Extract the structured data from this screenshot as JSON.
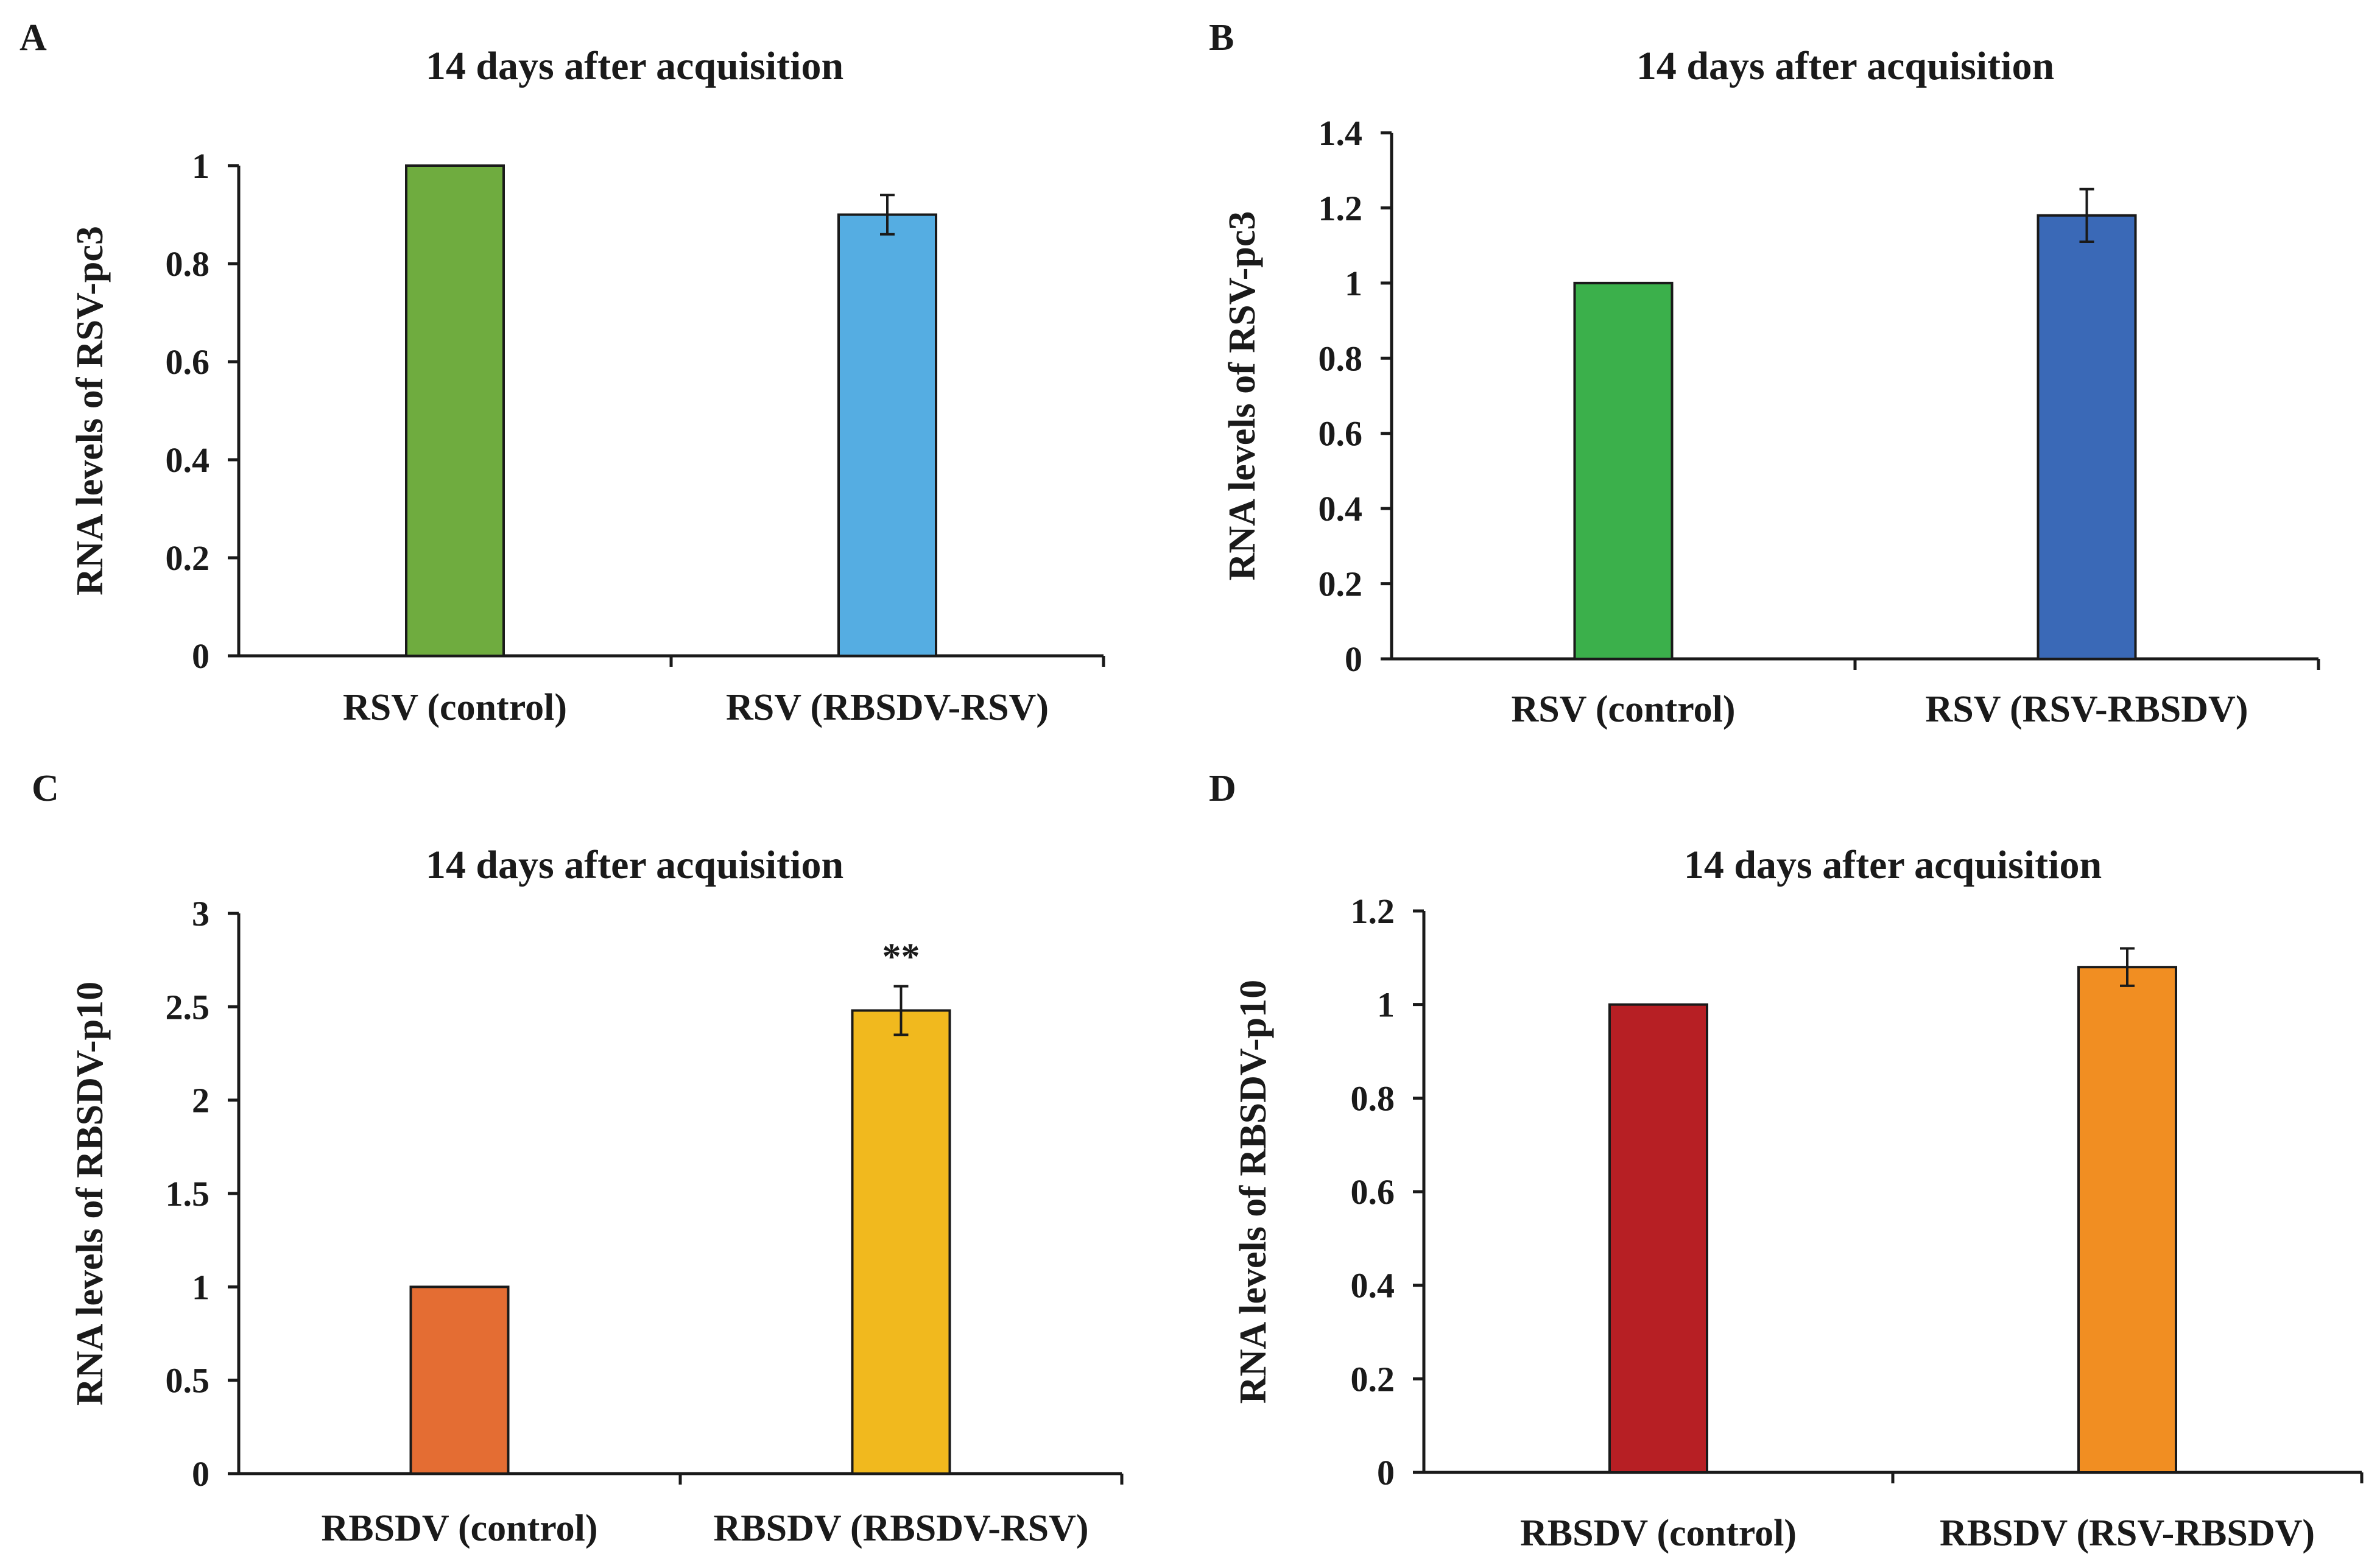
{
  "chart_data": [
    {
      "panel": "A",
      "type": "bar",
      "title": "14 days after acquisition",
      "xlabel": "",
      "ylabel": "RNA levels of RSV-pc3",
      "categories": [
        "RSV (control)",
        "RSV (RBSDV-RSV)"
      ],
      "values": [
        1.0,
        0.9
      ],
      "errors": [
        0,
        0.04
      ],
      "colors": [
        "#6fac3f",
        "#55ade2"
      ],
      "annotations": [
        "",
        ""
      ],
      "ylim": [
        0,
        1
      ],
      "ytick_labels": [
        "0",
        "0.2",
        "0.4",
        "0.6",
        "0.8",
        "1"
      ]
    },
    {
      "panel": "B",
      "type": "bar",
      "title": "14 days after acquisition",
      "xlabel": "",
      "ylabel": "RNA levels of RSV-pc3",
      "categories": [
        "RSV (control)",
        "RSV (RSV-RBSDV)"
      ],
      "values": [
        1.0,
        1.18
      ],
      "errors": [
        0,
        0.07
      ],
      "colors": [
        "#3bb04b",
        "#3a69b7"
      ],
      "annotations": [
        "",
        ""
      ],
      "ylim": [
        0,
        1.4
      ],
      "ytick_labels": [
        "0",
        "0.2",
        "0.4",
        "0.6",
        "0.8",
        "1",
        "1.2",
        "1.4"
      ]
    },
    {
      "panel": "C",
      "type": "bar",
      "title": "14 days after acquisition",
      "xlabel": "",
      "ylabel": "RNA levels of RBSDV-p10",
      "categories": [
        "RBSDV (control)",
        "RBSDV (RBSDV-RSV)"
      ],
      "values": [
        1.0,
        2.48
      ],
      "errors": [
        0,
        0.13
      ],
      "colors": [
        "#e46d33",
        "#f1b91e"
      ],
      "annotations": [
        "",
        "**"
      ],
      "ylim": [
        0,
        3
      ],
      "ytick_labels": [
        "0",
        "0.5",
        "1",
        "1.5",
        "2",
        "2.5",
        "3"
      ]
    },
    {
      "panel": "D",
      "type": "bar",
      "title": "14 days after acquisition",
      "xlabel": "",
      "ylabel": "RNA levels of RBSDV-p10",
      "categories": [
        "RBSDV (control)",
        "RBSDV (RSV-RBSDV)"
      ],
      "values": [
        1.0,
        1.08
      ],
      "errors": [
        0,
        0.04
      ],
      "colors": [
        "#b71f24",
        "#f18e22"
      ],
      "annotations": [
        "",
        ""
      ],
      "ylim": [
        0,
        1.2
      ],
      "ytick_labels": [
        "0",
        "0.2",
        "0.4",
        "0.6",
        "0.8",
        "1",
        "1.2"
      ]
    }
  ]
}
